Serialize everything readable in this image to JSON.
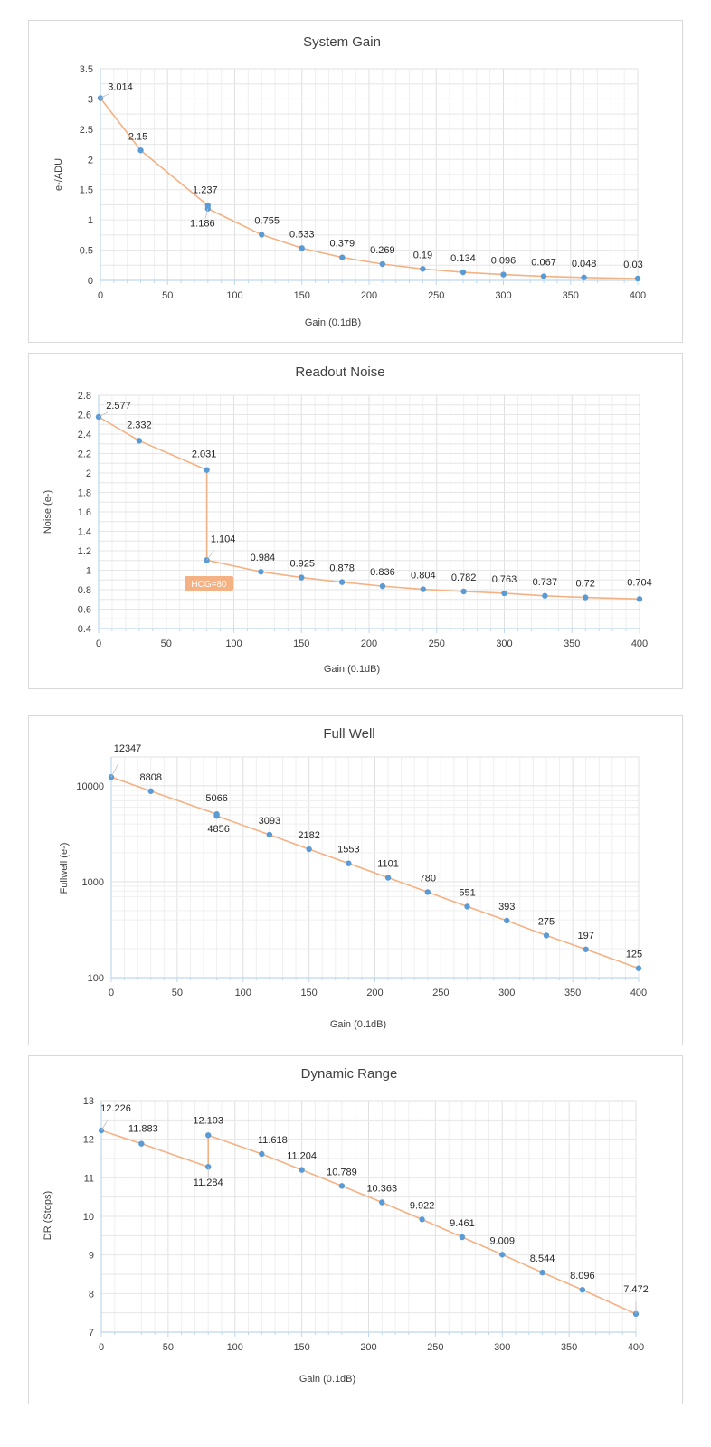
{
  "colors": {
    "line": "#f4b183",
    "point": "#5b9bd5",
    "grid": "#e6e6e6",
    "axis": "#bdd7ee",
    "annotation_bg": "#f4b183"
  },
  "chart_data": [
    {
      "type": "line",
      "title": "System Gain",
      "xlabel": "Gain (0.1dB)",
      "ylabel": "e-/ADU",
      "xlim": [
        0,
        400
      ],
      "ylim": [
        0,
        3.5
      ],
      "yscale": "linear",
      "xticks": [
        0,
        50,
        100,
        150,
        200,
        250,
        300,
        350,
        400
      ],
      "yticks": [
        0,
        0.5,
        1,
        1.5,
        2,
        2.5,
        3,
        3.5
      ],
      "ytick_labels": [
        "0",
        "0.5",
        "1",
        "1.5",
        "2",
        "2.5",
        "3",
        "3.5"
      ],
      "grid": true,
      "series": [
        {
          "x": [
            0,
            30,
            80,
            80,
            120,
            150,
            180,
            210,
            240,
            270,
            300,
            330,
            360,
            400
          ],
          "y": [
            3.014,
            2.15,
            1.237,
            1.186,
            0.755,
            0.533,
            0.379,
            0.269,
            0.19,
            0.134,
            0.096,
            0.067,
            0.048,
            0.03
          ],
          "labels": [
            "3.014",
            "2.15",
            "1.237",
            "1.186",
            "0.755",
            "0.533",
            "0.379",
            "0.269",
            "0.19",
            "0.134",
            "0.096",
            "0.067",
            "0.048",
            "0.03"
          ]
        }
      ]
    },
    {
      "type": "line",
      "title": "Readout Noise",
      "xlabel": "Gain (0.1dB)",
      "ylabel": "Noise (e-)",
      "xlim": [
        0,
        400
      ],
      "ylim": [
        0.4,
        2.8
      ],
      "yscale": "linear",
      "xticks": [
        0,
        50,
        100,
        150,
        200,
        250,
        300,
        350,
        400
      ],
      "yticks": [
        0.4,
        0.6,
        0.8,
        1,
        1.2,
        1.4,
        1.6,
        1.8,
        2,
        2.2,
        2.4,
        2.6,
        2.8
      ],
      "ytick_labels": [
        "0.4",
        "0.6",
        "0.8",
        "1",
        "1.2",
        "1.4",
        "1.6",
        "1.8",
        "2",
        "2.2",
        "2.4",
        "2.6",
        "2.8"
      ],
      "grid": true,
      "annotation": "HCG=80",
      "series": [
        {
          "x": [
            0,
            30,
            80,
            80,
            120,
            150,
            180,
            210,
            240,
            270,
            300,
            330,
            360,
            400
          ],
          "y": [
            2.577,
            2.332,
            2.031,
            1.104,
            0.984,
            0.925,
            0.878,
            0.836,
            0.804,
            0.782,
            0.763,
            0.737,
            0.72,
            0.704
          ],
          "labels": [
            "2.577",
            "2.332",
            "2.031",
            "1.104",
            "0.984",
            "0.925",
            "0.878",
            "0.836",
            "0.804",
            "0.782",
            "0.763",
            "0.737",
            "0.72",
            "0.704"
          ]
        }
      ]
    },
    {
      "type": "line",
      "title": "Full Well",
      "xlabel": "Gain (0.1dB)",
      "ylabel": "Fullwell (e-)",
      "xlim": [
        0,
        400
      ],
      "ylim": [
        100,
        20000
      ],
      "yscale": "log",
      "xticks": [
        0,
        50,
        100,
        150,
        200,
        250,
        300,
        350,
        400
      ],
      "yticks": [
        100,
        1000,
        10000
      ],
      "ytick_labels": [
        "100",
        "1000",
        "10000"
      ],
      "grid": true,
      "series": [
        {
          "x": [
            0,
            30,
            80,
            80,
            120,
            150,
            180,
            210,
            240,
            270,
            300,
            330,
            360,
            400
          ],
          "y": [
            12347,
            8808,
            5066,
            4856,
            3093,
            2182,
            1553,
            1101,
            780,
            551,
            393,
            275,
            197,
            125
          ],
          "labels": [
            "12347",
            "8808",
            "5066",
            "4856",
            "3093",
            "2182",
            "1553",
            "1101",
            "780",
            "551",
            "393",
            "275",
            "197",
            "125"
          ]
        }
      ]
    },
    {
      "type": "line",
      "title": "Dynamic Range",
      "xlabel": "Gain (0.1dB)",
      "ylabel": "DR (Stops)",
      "xlim": [
        0,
        400
      ],
      "ylim": [
        7,
        13
      ],
      "yscale": "linear",
      "xticks": [
        0,
        50,
        100,
        150,
        200,
        250,
        300,
        350,
        400
      ],
      "yticks": [
        7,
        8,
        9,
        10,
        11,
        12,
        13
      ],
      "ytick_labels": [
        "7",
        "8",
        "9",
        "10",
        "11",
        "12",
        "13"
      ],
      "grid": true,
      "series": [
        {
          "x": [
            0,
            30,
            80,
            80,
            120,
            150,
            180,
            210,
            240,
            270,
            300,
            330,
            360,
            400
          ],
          "y": [
            12.226,
            11.883,
            11.284,
            12.103,
            11.618,
            11.204,
            10.789,
            10.363,
            9.922,
            9.461,
            9.009,
            8.544,
            8.096,
            7.472
          ],
          "labels": [
            "12.226",
            "11.883",
            "11.284",
            "12.103",
            "11.618",
            "11.204",
            "10.789",
            "10.363",
            "9.922",
            "9.461",
            "9.009",
            "8.544",
            "8.096",
            "7.472"
          ]
        }
      ]
    }
  ]
}
